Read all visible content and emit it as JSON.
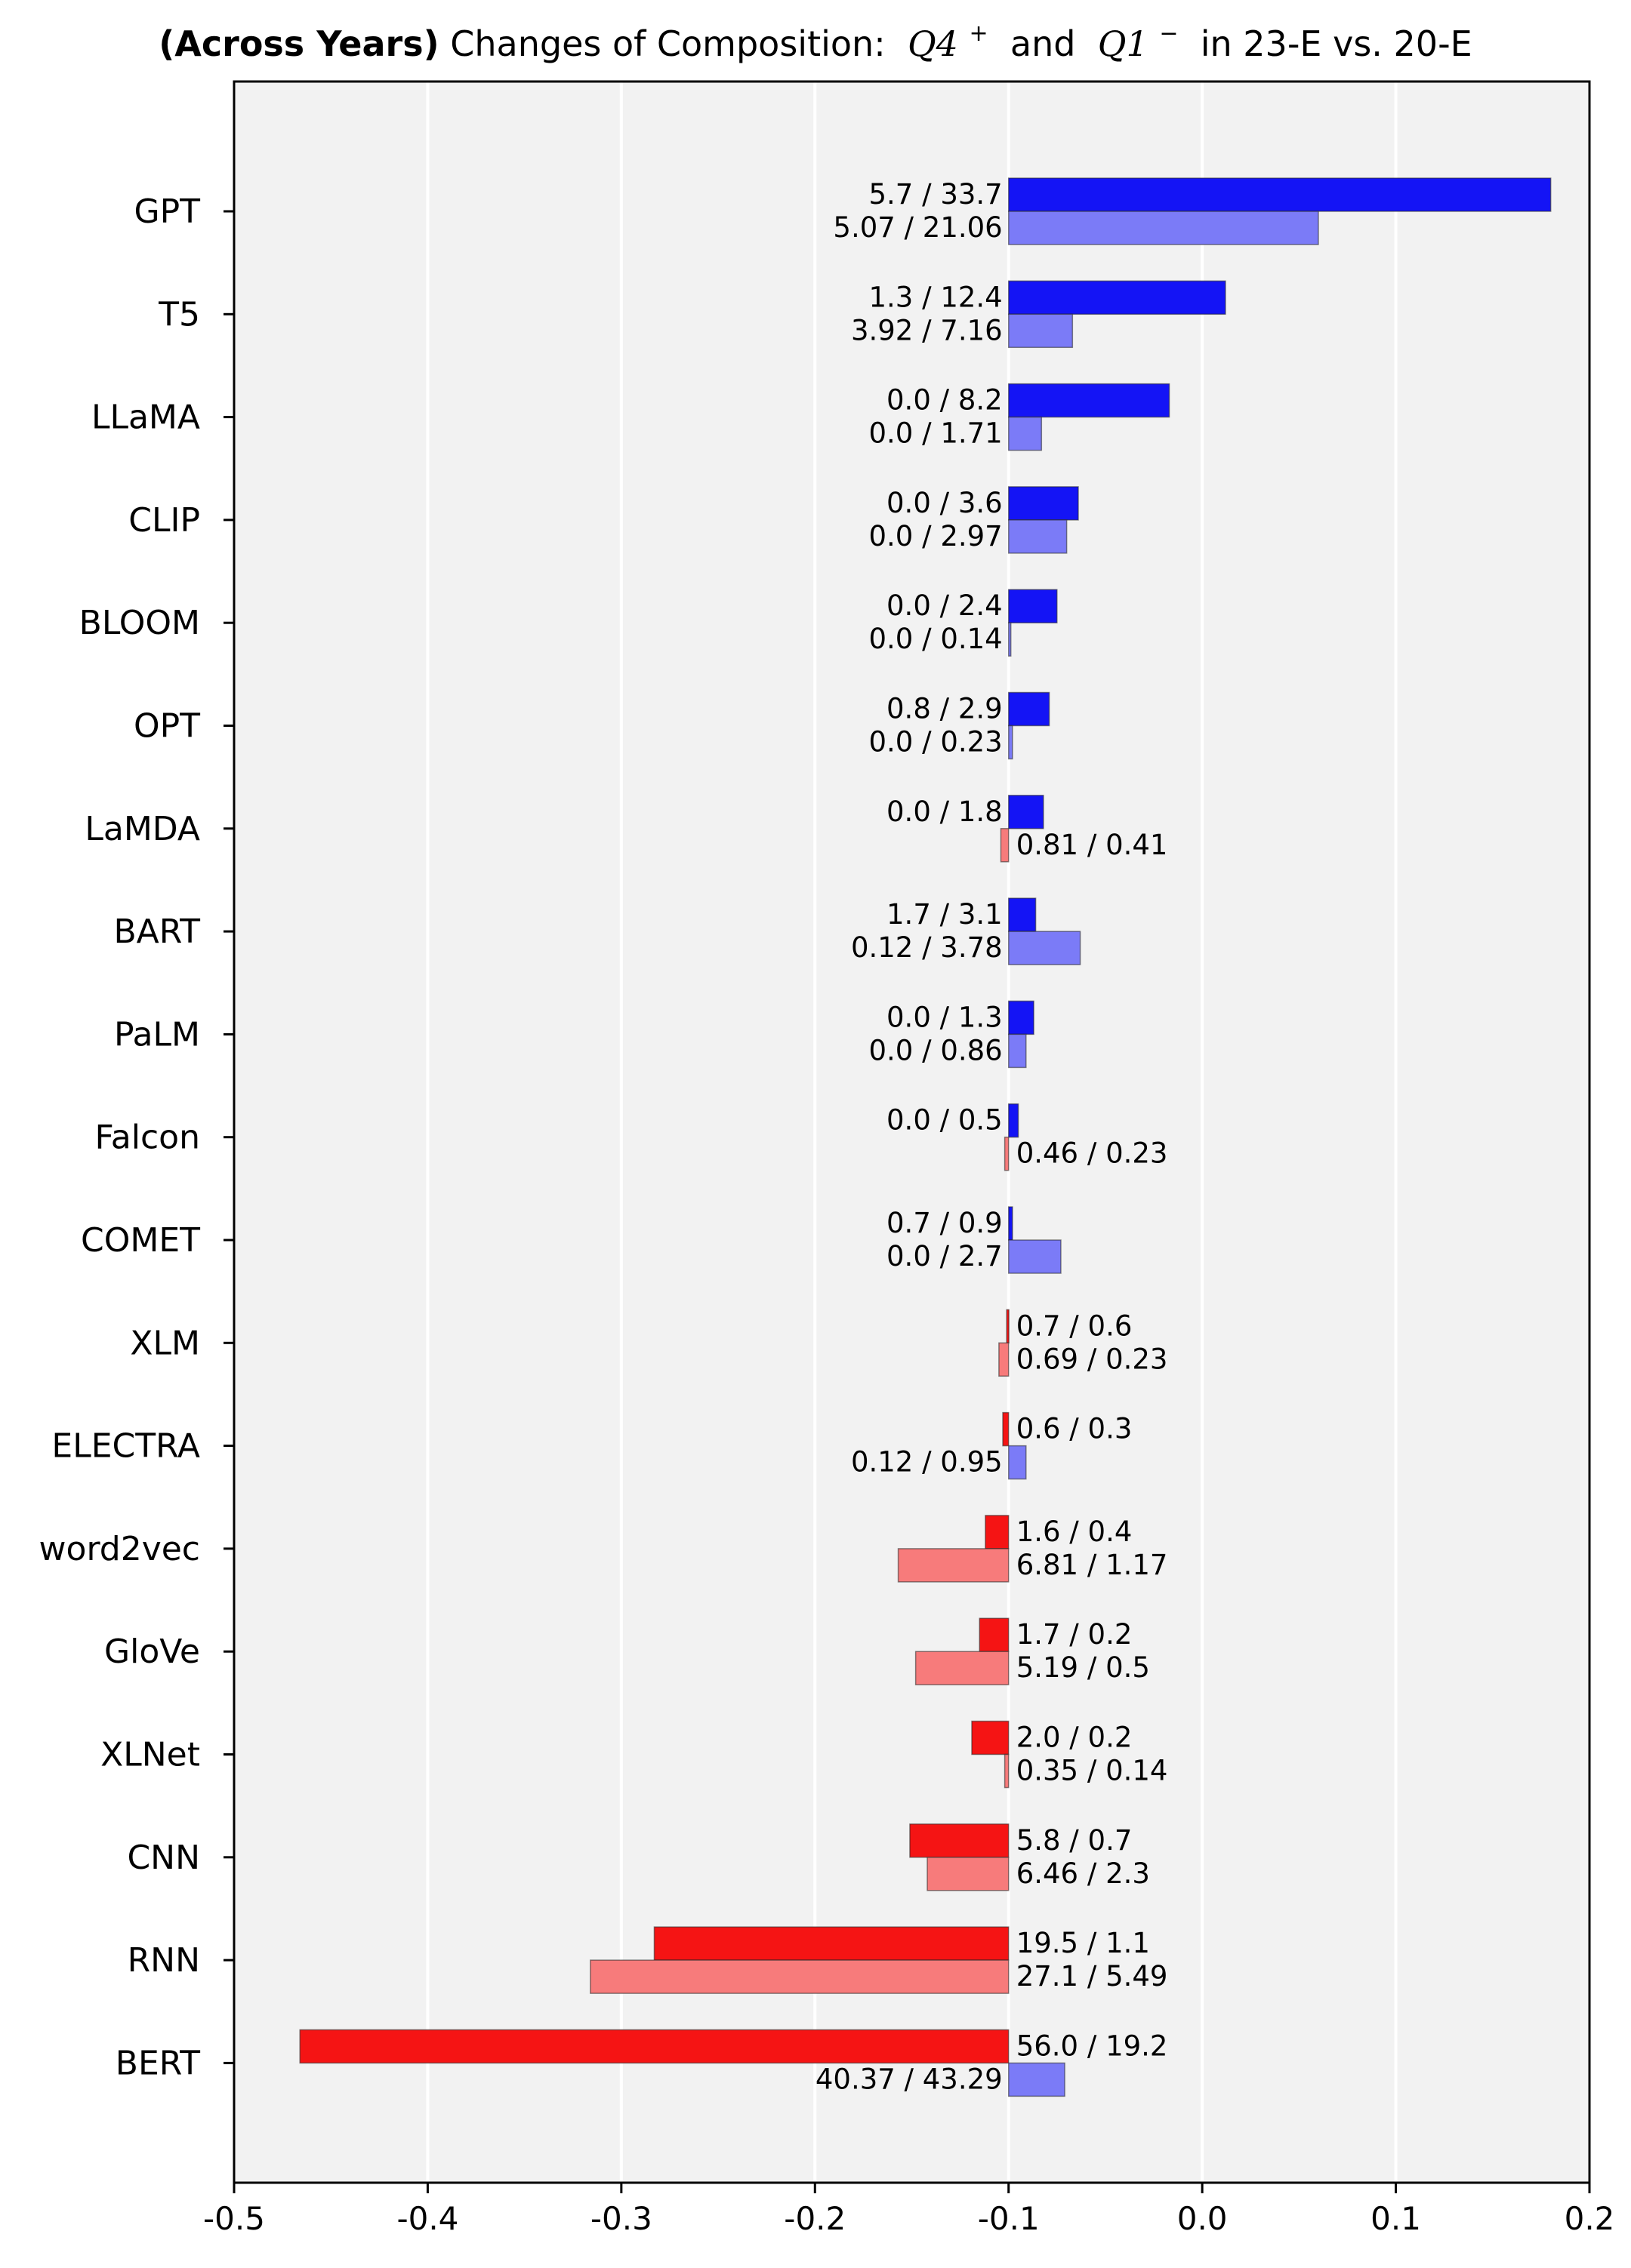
{
  "chart_data": {
    "type": "bar",
    "orientation": "horizontal",
    "title": {
      "bold_part": "(Across Years)",
      "pre_text": "Changes of Composition: ",
      "term1": "Q4",
      "term1_sup": "+",
      "mid_text": " and ",
      "term2": "Q1",
      "term2_sup": "−",
      "post_text": " in 23-E vs. 20-E"
    },
    "xlabel": "",
    "ylabel": "",
    "xlim": [
      -0.5,
      0.2
    ],
    "x_ticks": [
      "-0.5",
      "-0.4",
      "-0.3",
      "-0.2",
      "-0.1",
      "0.0",
      "0.1",
      "0.2"
    ],
    "bar_origin": -0.1,
    "grid": "vertical",
    "colors": {
      "positive_dark": "#1414f5",
      "positive_light": "#7b7bf7",
      "negative_dark": "#f51414",
      "negative_light": "#f77b7b",
      "background": "#f2f2f2",
      "grid": "#ffffff"
    },
    "categories": [
      "GPT",
      "T5",
      "LLaMA",
      "CLIP",
      "BLOOM",
      "OPT",
      "LaMDA",
      "BART",
      "PaLM",
      "Falcon",
      "COMET",
      "XLM",
      "ELECTRA",
      "word2vec",
      "GloVe",
      "XLNet",
      "CNN",
      "RNN",
      "BERT"
    ],
    "series": [
      {
        "values": [
          0.18,
          0.012,
          -0.017,
          -0.064,
          -0.075,
          -0.079,
          -0.082,
          -0.086,
          -0.087,
          -0.095,
          -0.098,
          -0.101,
          -0.103,
          -0.112,
          -0.115,
          -0.119,
          -0.151,
          -0.283,
          -0.466
        ],
        "labels": [
          "5.7 / 33.7",
          "1.3 / 12.4",
          "0.0 / 8.2",
          "0.0 / 3.6",
          "0.0 / 2.4",
          "0.8 / 2.9",
          "0.0 / 1.8",
          "1.7 / 3.1",
          "0.0 / 1.3",
          "0.0 / 0.5",
          "0.7 / 0.9",
          "0.7 / 0.6",
          "0.6 / 0.3",
          "1.6 / 0.4",
          "1.7 / 0.2",
          "2.0 / 0.2",
          "5.8 / 0.7",
          "19.5 / 1.1",
          "56.0 / 19.2"
        ]
      },
      {
        "values": [
          0.06,
          -0.067,
          -0.083,
          -0.07,
          -0.099,
          -0.098,
          -0.104,
          -0.063,
          -0.091,
          -0.102,
          -0.073,
          -0.105,
          -0.091,
          -0.157,
          -0.148,
          -0.102,
          -0.142,
          -0.316,
          -0.071
        ],
        "labels": [
          "5.07 / 21.06",
          "3.92 / 7.16",
          "0.0 / 1.71",
          "0.0 / 2.97",
          "0.0 / 0.14",
          "0.0 / 0.23",
          "0.81 / 0.41",
          "0.12 / 3.78",
          "0.0 / 0.86",
          "0.46 / 0.23",
          "0.0 / 2.7",
          "0.69 / 0.23",
          "0.12 / 0.95",
          "6.81 / 1.17",
          "5.19 / 0.5",
          "0.35 / 0.14",
          "6.46 / 2.3",
          "27.1 / 5.49",
          "40.37 / 43.29"
        ]
      }
    ]
  }
}
